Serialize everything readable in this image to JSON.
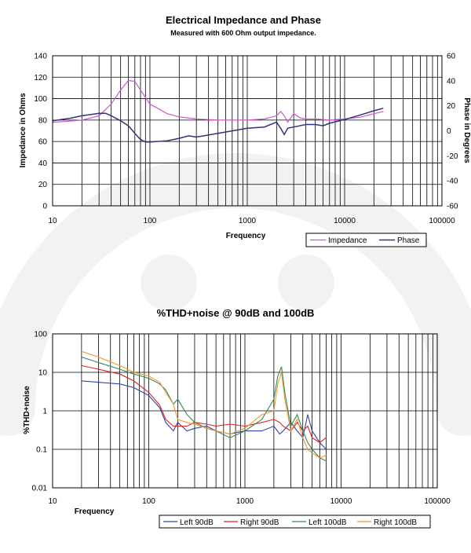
{
  "watermark_color": "#f2f2f2",
  "chart_data": [
    {
      "type": "line",
      "title": "Electrical Impedance and Phase",
      "subtitle": "Measured with 600 Ohm output impedance.",
      "xlabel": "Frequency",
      "ylabel": "Impedance in Ohms",
      "y2label": "Phase in Degrees",
      "xscale": "log",
      "xlim": [
        10,
        100000
      ],
      "ylim": [
        0,
        140
      ],
      "y2lim": [
        -60,
        60
      ],
      "x_ticks": [
        "10",
        "100",
        "1000",
        "10000",
        "100000"
      ],
      "y_ticks": [
        "0",
        "20",
        "40",
        "60",
        "80",
        "100",
        "120",
        "140"
      ],
      "y2_ticks": [
        "-60",
        "-40",
        "-20",
        "0",
        "20",
        "40",
        "60"
      ],
      "grid": true,
      "legend_position": "bottom-right",
      "series": [
        {
          "name": "Impedance",
          "axis": "left",
          "color": "#cc55cc",
          "x": [
            10,
            15,
            20,
            30,
            40,
            50,
            60,
            70,
            80,
            100,
            150,
            200,
            300,
            500,
            1000,
            1500,
            2000,
            2200,
            2400,
            2600,
            3000,
            3500,
            4000,
            5000,
            7000,
            10000,
            15000,
            20000,
            25000
          ],
          "y": [
            78,
            79,
            80,
            84,
            95,
            108,
            117,
            116,
            108,
            95,
            86,
            83,
            81,
            80,
            80,
            81,
            84,
            88,
            84,
            78,
            86,
            82,
            81,
            81,
            80,
            81,
            83,
            86,
            88
          ]
        },
        {
          "name": "Phase",
          "axis": "right",
          "color": "#333377",
          "x": [
            10,
            15,
            20,
            30,
            35,
            40,
            50,
            60,
            70,
            80,
            90,
            100,
            150,
            200,
            250,
            300,
            500,
            1000,
            1500,
            2000,
            2200,
            2400,
            2600,
            3000,
            4000,
            5000,
            6000,
            7000,
            10000,
            15000,
            20000,
            25000
          ],
          "y": [
            8,
            10,
            12,
            14,
            14,
            12,
            8,
            4,
            -2,
            -7,
            -9,
            -9,
            -8,
            -6,
            -4,
            -5,
            -2,
            2,
            3,
            7,
            2,
            -3,
            2,
            3,
            5,
            5,
            4,
            6,
            9,
            13,
            16,
            18
          ]
        }
      ]
    },
    {
      "type": "line",
      "title": "%THD+noise @ 90dB and 100dB",
      "xlabel": "Frequency",
      "ylabel": "%THD+noise",
      "xscale": "log",
      "yscale": "log",
      "xlim": [
        10,
        100000
      ],
      "ylim": [
        0.01,
        100
      ],
      "x_ticks": [
        "10",
        "100",
        "1000",
        "10000",
        "100000"
      ],
      "y_ticks": [
        "0.01",
        "0.1",
        "1",
        "10",
        "100"
      ],
      "grid": true,
      "legend_position": "bottom",
      "series": [
        {
          "name": "Left 90dB",
          "color": "#3344aa",
          "x": [
            20,
            30,
            50,
            70,
            100,
            130,
            150,
            180,
            200,
            250,
            300,
            400,
            500,
            700,
            1000,
            1500,
            2000,
            2300,
            2500,
            3000,
            3500,
            4000,
            4500,
            5000,
            6000,
            7000
          ],
          "y": [
            6,
            5.5,
            5,
            4,
            2.5,
            1.2,
            0.5,
            0.3,
            0.5,
            0.3,
            0.35,
            0.4,
            0.3,
            0.25,
            0.3,
            0.3,
            0.4,
            0.25,
            0.3,
            0.5,
            0.3,
            0.2,
            0.8,
            0.3,
            0.15,
            0.1
          ]
        },
        {
          "name": "Right 90dB",
          "color": "#dd2222",
          "x": [
            20,
            30,
            50,
            70,
            100,
            130,
            150,
            180,
            200,
            250,
            300,
            400,
            500,
            700,
            1000,
            1500,
            2000,
            2300,
            2500,
            3000,
            3500,
            4000,
            4500,
            5000,
            6000,
            7000
          ],
          "y": [
            15,
            12,
            9,
            6,
            3,
            1.4,
            0.6,
            0.4,
            0.4,
            0.4,
            0.5,
            0.45,
            0.4,
            0.45,
            0.4,
            0.5,
            0.6,
            0.5,
            0.4,
            0.3,
            0.5,
            0.3,
            0.4,
            0.2,
            0.15,
            0.2
          ]
        },
        {
          "name": "Left 100dB",
          "color": "#338855",
          "x": [
            20,
            30,
            50,
            70,
            100,
            130,
            150,
            180,
            200,
            250,
            300,
            400,
            500,
            700,
            1000,
            1500,
            2000,
            2200,
            2400,
            2600,
            3000,
            3500,
            4000,
            4500,
            5000,
            6000,
            7000
          ],
          "y": [
            25,
            18,
            12,
            9,
            7,
            5,
            3.5,
            1.5,
            2,
            0.8,
            0.5,
            0.35,
            0.3,
            0.2,
            0.3,
            0.6,
            2,
            8,
            14,
            3,
            0.4,
            0.8,
            0.3,
            0.15,
            0.1,
            0.06,
            0.05
          ]
        },
        {
          "name": "Right 100dB",
          "color": "#ee9933",
          "x": [
            20,
            30,
            50,
            70,
            100,
            130,
            150,
            180,
            200,
            250,
            300,
            400,
            500,
            700,
            1000,
            1500,
            2000,
            2200,
            2400,
            2600,
            3000,
            3500,
            4000,
            4500,
            5000,
            6000,
            7000
          ],
          "y": [
            35,
            25,
            15,
            10,
            8,
            5.5,
            3,
            1.5,
            0.6,
            0.5,
            0.45,
            0.35,
            0.3,
            0.25,
            0.35,
            0.8,
            1,
            5,
            10,
            2,
            0.3,
            0.6,
            0.2,
            0.1,
            0.08,
            0.06,
            0.07
          ]
        }
      ]
    }
  ]
}
